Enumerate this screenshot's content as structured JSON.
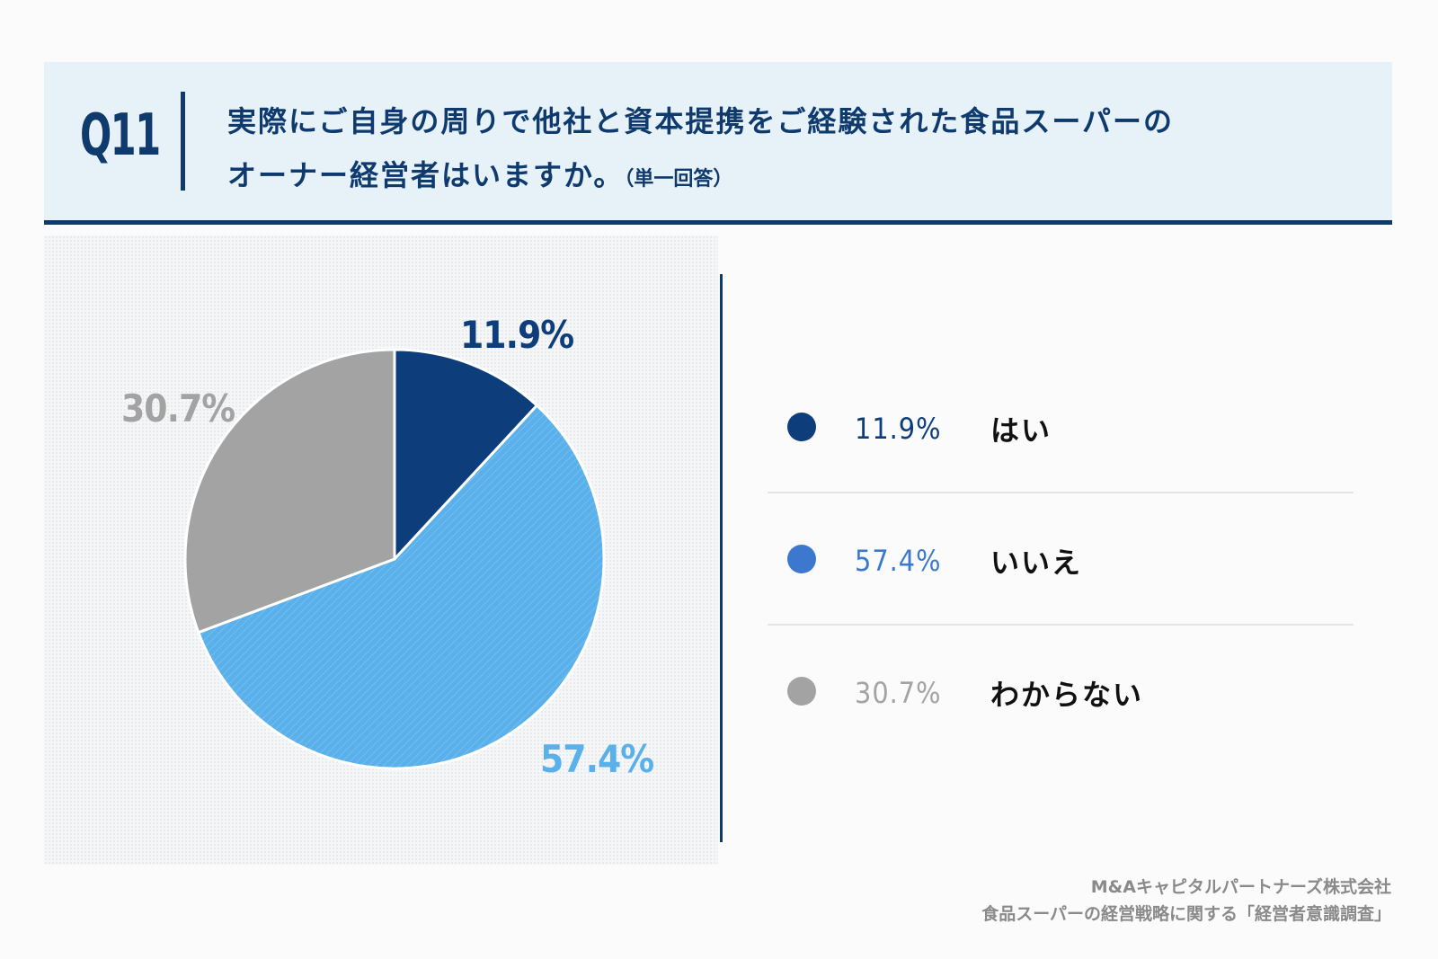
{
  "header": {
    "question_number": "Q11",
    "question_line1": "実際にご自身の周りで他社と資本提携をご経験された食品スーパーの",
    "question_line2": "オーナー経営者はいますか。",
    "question_note": "（単一回答）"
  },
  "chart_data": {
    "type": "pie",
    "categories": [
      "はい",
      "いいえ",
      "わからない"
    ],
    "values": [
      11.9,
      57.4,
      30.7
    ],
    "labels": [
      "11.9%",
      "57.4%",
      "30.7%"
    ],
    "colors": [
      "#0e3d7c",
      "#5ab0ea",
      "#a3a3a3"
    ],
    "legend_dot_colors": [
      "#0e3d7c",
      "#3d78cf",
      "#a3a3a3"
    ],
    "legend_placement": "right",
    "start_angle": "12 o'clock, clockwise"
  },
  "footer": {
    "company": "M&Aキャピタルパートナーズ株式会社",
    "survey": "食品スーパーの経営戦略に関する「経営者意識調査」"
  }
}
